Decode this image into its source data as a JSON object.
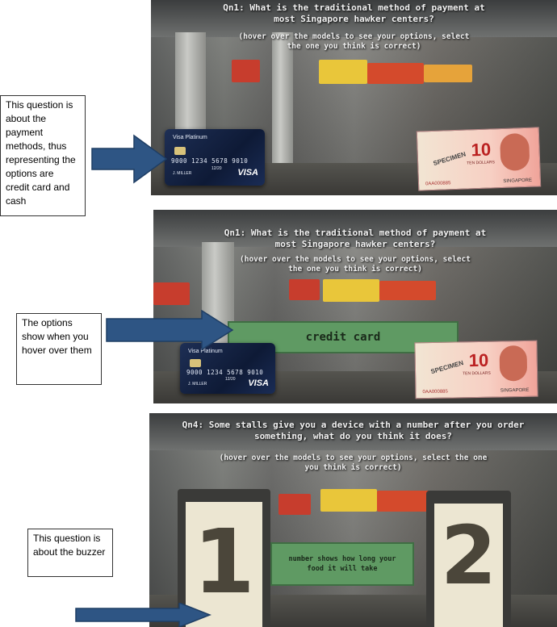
{
  "panels": [
    {
      "question": "Qn1: What is the traditional method of payment at most Singapore hawker centers?",
      "hint": "(hover over the models to see your options, select the one you think is correct)",
      "card": {
        "brand": "Visa Platinum",
        "number": "9000 1234 5678 9010",
        "expiry": "12/20",
        "holder": "J. MILLER",
        "network": "VISA"
      },
      "banknote": {
        "specimen": "SPECIMEN",
        "value": "10",
        "words": "TEN DOLLARS",
        "country": "SINGAPORE",
        "serial": "0AA000885"
      }
    },
    {
      "question": "Qn1: What is the traditional method of payment at most Singapore hawker centers?",
      "hint": "(hover over the models to see your options, select the one you think is correct)",
      "option_label": "credit card",
      "card": {
        "brand": "Visa Platinum",
        "number": "9000 1234 5678 9010",
        "expiry": "12/20",
        "holder": "J. MILLER",
        "network": "VISA"
      },
      "banknote": {
        "specimen": "SPECIMEN",
        "value": "10",
        "words": "TEN DOLLARS",
        "country": "SINGAPORE",
        "serial": "0AA000885"
      }
    },
    {
      "question": "Qn4: Some stalls give you a device with a number after you order something, what do you think it does?",
      "hint": "(hover over the models to see your options, select the one you think is correct)",
      "option_label": "number shows how long your food it will take",
      "buzzer_left": "1",
      "buzzer_right": "2"
    }
  ],
  "annotations": [
    "This question is about the payment methods, thus representing the options are credit card and cash",
    "The options show when you hover over them",
    "This question is about the buzzer"
  ],
  "colors": {
    "arrow": "#2e5584",
    "option_box": "#5f9a63",
    "card": "#13224a"
  }
}
